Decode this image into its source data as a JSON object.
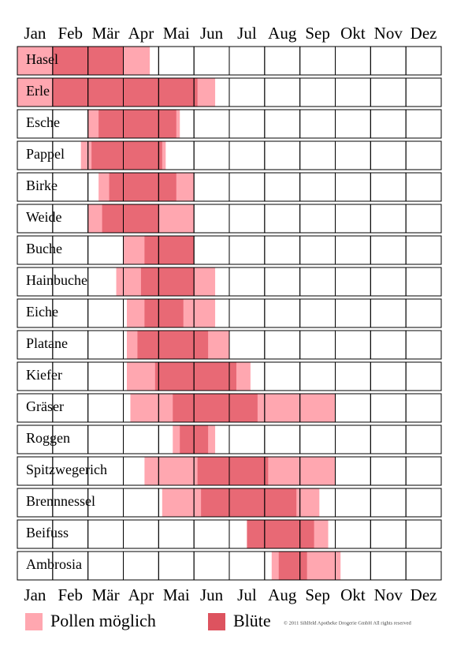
{
  "chart_data": {
    "type": "gantt",
    "categories": [
      "Jan",
      "Feb",
      "Mär",
      "Apr",
      "Mai",
      "Jun",
      "Jul",
      "Aug",
      "Sep",
      "Okt",
      "Nov",
      "Dez"
    ],
    "rows": [
      "Hasel",
      "Erle",
      "Esche",
      "Pappel",
      "Birke",
      "Weide",
      "Buche",
      "Hainbuche",
      "Eiche",
      "Platane",
      "Kiefer",
      "Gräser",
      "Roggen",
      "Spitzwegerich",
      "Brennnessel",
      "Beifuss",
      "Ambrosia"
    ],
    "xlim": [
      0,
      12
    ],
    "series": [
      {
        "name": "Pollen möglich",
        "color": "#ff8a96",
        "start": [
          0,
          0,
          2.0,
          1.8,
          2.3,
          2.0,
          3.0,
          2.8,
          3.1,
          3.1,
          3.1,
          3.2,
          4.4,
          3.6,
          4.1,
          6.5,
          7.2
        ],
        "end": [
          3.75,
          5.6,
          4.6,
          4.2,
          5.0,
          5.0,
          5.0,
          5.6,
          5.6,
          6.0,
          6.6,
          9.0,
          5.6,
          9.0,
          8.55,
          8.8,
          9.15
        ]
      },
      {
        "name": "Blüte",
        "color": "#d9404e",
        "start": [
          1.0,
          1.0,
          2.3,
          2.1,
          2.6,
          2.4,
          3.6,
          3.5,
          3.6,
          3.4,
          3.9,
          4.4,
          4.6,
          5.1,
          5.2,
          6.5,
          7.4
        ],
        "end": [
          3.0,
          5.1,
          4.5,
          4.1,
          4.5,
          4.0,
          5.0,
          5.0,
          4.7,
          5.4,
          6.2,
          6.8,
          5.4,
          7.1,
          7.9,
          8.4,
          8.2
        ]
      }
    ],
    "copyright": "© 2011 Sihlfeld Apotheke Drogerie GmbH All rights reserved"
  }
}
